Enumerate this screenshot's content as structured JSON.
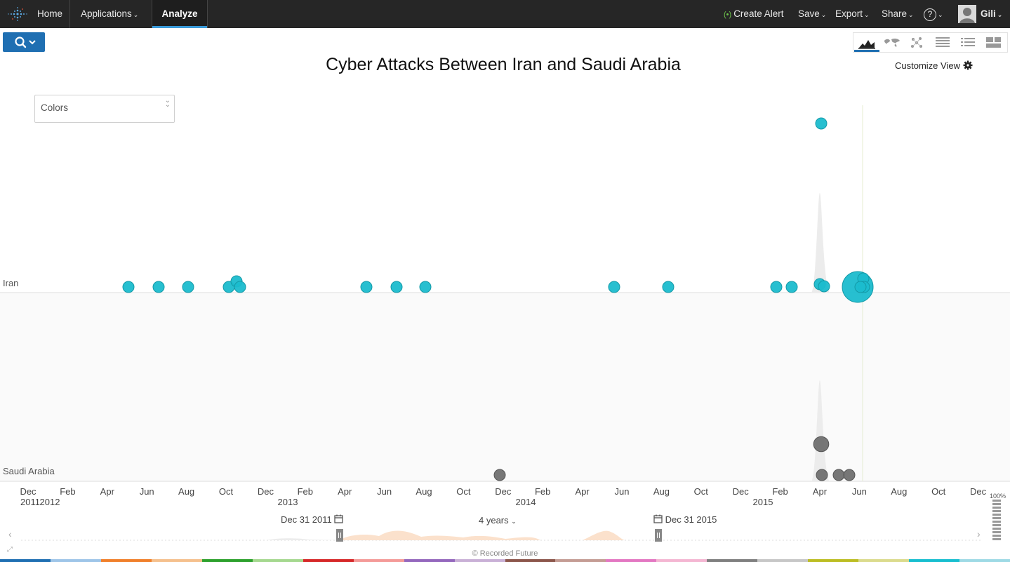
{
  "nav": {
    "home": "Home",
    "applications": "Applications",
    "analyze": "Analyze",
    "create_alert": "Create Alert",
    "save": "Save",
    "export": "Export",
    "share": "Share",
    "help": "?",
    "user": "Gili"
  },
  "view": {
    "title": "Cyber Attacks Between Iran and Saudi Arabia",
    "customize": "Customize View",
    "colors_label": "Colors"
  },
  "lanes": {
    "iran": "Iran",
    "saudi": "Saudi Arabia"
  },
  "axis": {
    "months": [
      "Dec",
      "Feb",
      "Apr",
      "Jun",
      "Aug",
      "Oct",
      "Dec",
      "Feb",
      "Apr",
      "Jun",
      "Aug",
      "Oct",
      "Dec",
      "Feb",
      "Apr",
      "Jun",
      "Aug",
      "Oct",
      "Dec",
      "Feb",
      "Apr",
      "Jun",
      "Aug",
      "Oct",
      "Dec"
    ],
    "years": [
      "2011",
      "2012",
      "2013",
      "2014",
      "2015"
    ]
  },
  "range": {
    "start": "Dec 31 2011",
    "span": "4 years",
    "end": "Dec 31 2015",
    "zoom": "100%"
  },
  "footer": "© Recorded Future",
  "colors": {
    "iran_bubble": "#1bbccd",
    "saudi_bubble": "#707070",
    "nav_bg": "#262626",
    "primary": "#1f6fb2",
    "strip": [
      "#1f6fb2",
      "#9ec5e8",
      "#f07f2a",
      "#f5c08d",
      "#2ca02c",
      "#a5d88f",
      "#d62728",
      "#f49a98",
      "#9467bd",
      "#c9b0d6",
      "#8c564b",
      "#c49c94",
      "#e377c2",
      "#f4b6d2",
      "#7f7f7f",
      "#c7c7c7",
      "#bcbd22",
      "#dbdb8d",
      "#17becf",
      "#9edae5"
    ]
  },
  "chart_data": {
    "type": "scatter",
    "x_range": [
      "2011-12",
      "2015-12"
    ],
    "series": [
      {
        "name": "Iran",
        "points": [
          {
            "date": "2012-05",
            "size": 1
          },
          {
            "date": "2012-06",
            "size": 1
          },
          {
            "date": "2012-07",
            "size": 1
          },
          {
            "date": "2012-08",
            "size": 1
          },
          {
            "date": "2012-10",
            "size": 1
          },
          {
            "date": "2012-10",
            "size": 1
          },
          {
            "date": "2012-10",
            "size": 1
          },
          {
            "date": "2013-05",
            "size": 1
          },
          {
            "date": "2013-06",
            "size": 1
          },
          {
            "date": "2013-08",
            "size": 1
          },
          {
            "date": "2014-06",
            "size": 1
          },
          {
            "date": "2014-08",
            "size": 1
          },
          {
            "date": "2015-02",
            "size": 1
          },
          {
            "date": "2015-02",
            "size": 1
          },
          {
            "date": "2015-04",
            "size": 1
          },
          {
            "date": "2015-04",
            "size": 1
          },
          {
            "date": "2015-04",
            "size": 6
          },
          {
            "date": "2015-06",
            "size": 1
          },
          {
            "date": "2015-06",
            "size": 1
          },
          {
            "date": "2015-06",
            "size": 1
          }
        ]
      },
      {
        "name": "Saudi Arabia",
        "points": [
          {
            "date": "2013-12",
            "size": 1
          },
          {
            "date": "2015-04",
            "size": 1
          },
          {
            "date": "2015-04",
            "size": 2
          },
          {
            "date": "2015-05",
            "size": 1
          },
          {
            "date": "2015-05",
            "size": 1
          }
        ]
      }
    ]
  }
}
